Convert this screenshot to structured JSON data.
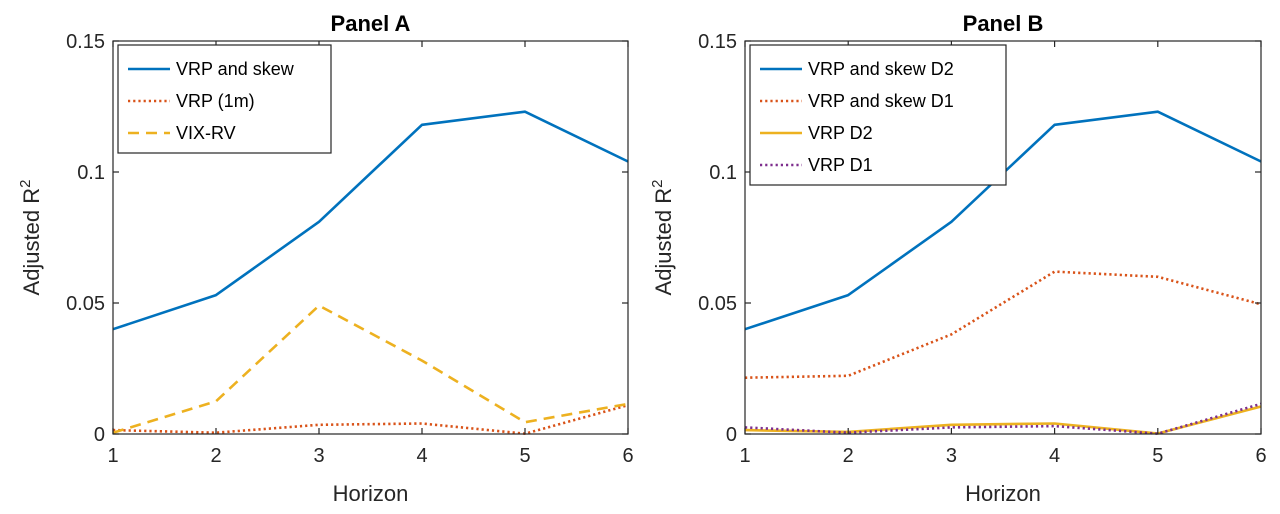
{
  "chart_data": [
    {
      "type": "line",
      "title": "Panel A",
      "xlabel": "Horizon",
      "ylabel": "Adjusted R",
      "ylabel_sup": "2",
      "x": [
        1,
        2,
        3,
        4,
        5,
        6
      ],
      "xticks": [
        "1",
        "2",
        "3",
        "4",
        "5",
        "6"
      ],
      "yticks": [
        "0",
        "0.05",
        "0.1",
        "0.15"
      ],
      "xlim": [
        1,
        6
      ],
      "ylim": [
        0,
        0.15
      ],
      "legend_position": "top-left",
      "series": [
        {
          "name": "VRP and skew",
          "values": [
            0.04,
            0.053,
            0.081,
            0.118,
            0.123,
            0.104
          ],
          "color": "#0072BD",
          "style": "solid"
        },
        {
          "name": "VRP (1m)",
          "values": [
            0.0015,
            0.0005,
            0.0035,
            0.004,
            0.0001,
            0.011
          ],
          "color": "#D95319",
          "style": "dotted"
        },
        {
          "name": "VIX-RV",
          "values": [
            0.0005,
            0.0125,
            0.049,
            0.028,
            0.0045,
            0.0115
          ],
          "color": "#EDB120",
          "style": "dashed"
        }
      ]
    },
    {
      "type": "line",
      "title": "Panel B",
      "xlabel": "Horizon",
      "ylabel": "Adjusted R",
      "ylabel_sup": "2",
      "x": [
        1,
        2,
        3,
        4,
        5,
        6
      ],
      "xticks": [
        "1",
        "2",
        "3",
        "4",
        "5",
        "6"
      ],
      "yticks": [
        "0",
        "0.05",
        "0.1",
        "0.15"
      ],
      "xlim": [
        1,
        6
      ],
      "ylim": [
        0,
        0.15
      ],
      "legend_position": "top-left",
      "series": [
        {
          "name": "VRP and skew D2",
          "values": [
            0.04,
            0.053,
            0.081,
            0.118,
            0.123,
            0.104
          ],
          "color": "#0072BD",
          "style": "solid"
        },
        {
          "name": "VRP and skew D1",
          "values": [
            0.0215,
            0.0222,
            0.038,
            0.062,
            0.06,
            0.0495
          ],
          "color": "#D95319",
          "style": "dotted"
        },
        {
          "name": "VRP D2",
          "values": [
            0.0015,
            0.0008,
            0.0035,
            0.004,
            0.0002,
            0.0105
          ],
          "color": "#EDB120",
          "style": "solid"
        },
        {
          "name": "VRP D1",
          "values": [
            0.0025,
            0.0005,
            0.0025,
            0.003,
            0.0001,
            0.0115
          ],
          "color": "#7E2F8E",
          "style": "dotted"
        }
      ]
    }
  ]
}
